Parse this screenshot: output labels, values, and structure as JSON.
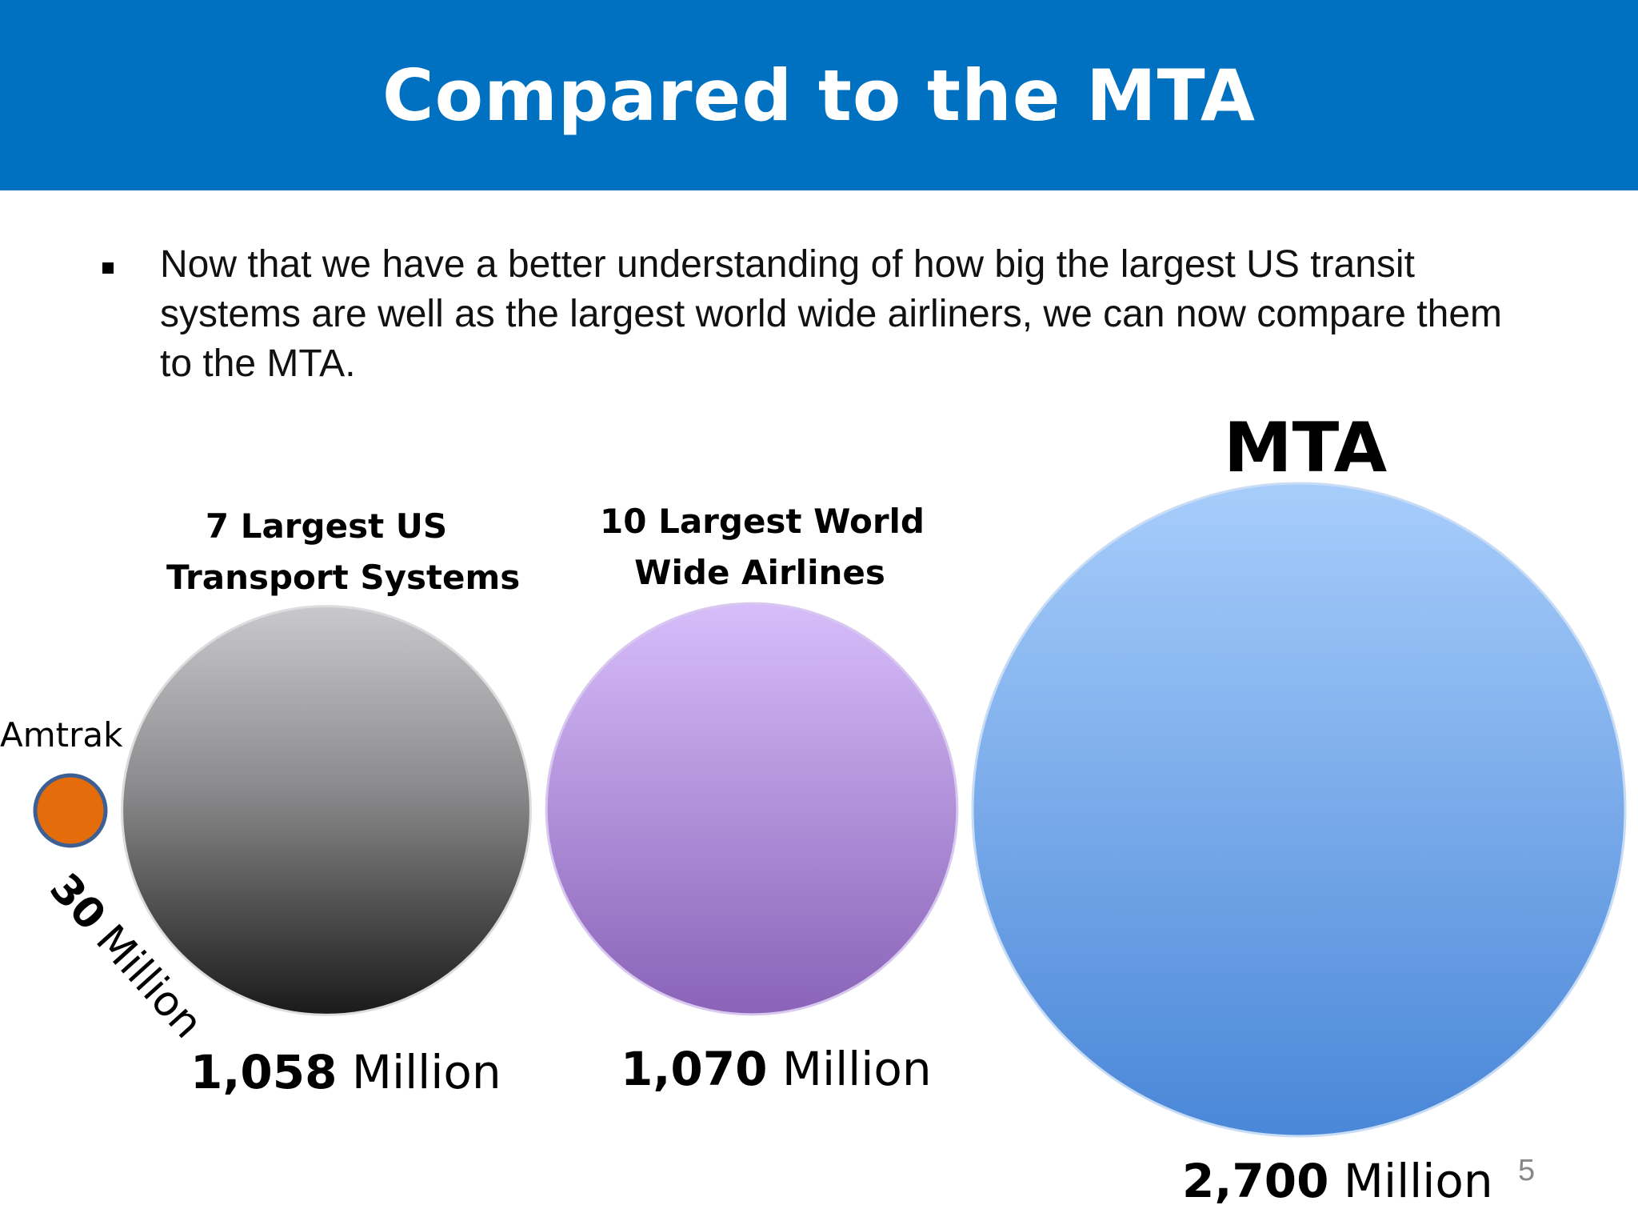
{
  "title": "Compared to the MTA",
  "bullet": "Now that we have a better understanding of how big the largest US transit systems are well as the largest world wide airliners, we can now compare them to the MTA.",
  "page_number": "5",
  "colors": {
    "header": "#0070c0",
    "amtrak": "#e46c0a",
    "us_systems": "#7f7f7f",
    "airlines": "#a98bd6",
    "mta": "#6fa8ee"
  },
  "chart_data": {
    "type": "bubble",
    "unit": "Million",
    "series": [
      {
        "name": "Amtrak",
        "value": 30,
        "value_label": "30",
        "unit_label": "Million"
      },
      {
        "name": "7 Largest US Transport Systems",
        "name_lines": [
          "7 Largest US",
          "Transport Systems"
        ],
        "value": 1058,
        "value_label": "1,058",
        "unit_label": "Million"
      },
      {
        "name": "10 Largest World Wide Airlines",
        "name_lines": [
          "10 Largest World",
          "Wide Airlines"
        ],
        "value": 1070,
        "value_label": "1,070",
        "unit_label": "Million"
      },
      {
        "name": "MTA",
        "value": 2700,
        "value_label": "2,700",
        "unit_label": "Million"
      }
    ]
  }
}
